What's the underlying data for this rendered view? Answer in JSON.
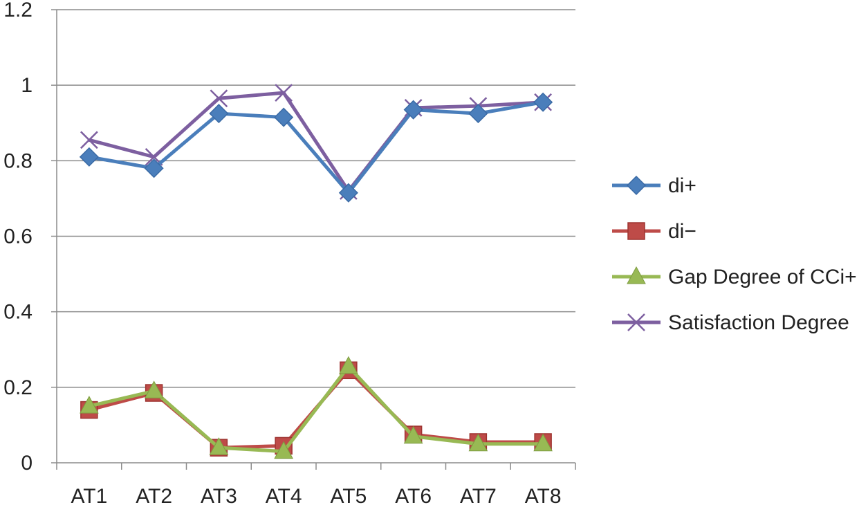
{
  "chart_data": {
    "type": "line",
    "title": "",
    "xlabel": "",
    "ylabel": "",
    "categories": [
      "AT1",
      "AT2",
      "AT3",
      "AT4",
      "AT5",
      "AT6",
      "AT7",
      "AT8"
    ],
    "ylim": [
      0,
      1.2
    ],
    "yticks": [
      0,
      0.2,
      0.4,
      0.6,
      0.8,
      1,
      1.2
    ],
    "ytick_labels": [
      "0",
      "0.2",
      "0.4",
      "0.6",
      "0.8",
      "1",
      "1.2"
    ],
    "grid": "horizontal",
    "legend_position": "right",
    "series": [
      {
        "name": "di+",
        "color": "#4a7ebb",
        "marker": "diamond",
        "values": [
          0.81,
          0.78,
          0.925,
          0.915,
          0.715,
          0.935,
          0.925,
          0.955
        ]
      },
      {
        "name": "di−",
        "color": "#be4b48",
        "marker": "square",
        "values": [
          0.14,
          0.185,
          0.04,
          0.045,
          0.245,
          0.075,
          0.055,
          0.055
        ]
      },
      {
        "name": "Gap Degree of CCi+",
        "color": "#98b954",
        "marker": "triangle",
        "values": [
          0.15,
          0.19,
          0.04,
          0.03,
          0.255,
          0.07,
          0.05,
          0.05
        ]
      },
      {
        "name": "Satisfaction Degree",
        "color": "#7d5fa0",
        "marker": "x",
        "values": [
          0.855,
          0.81,
          0.965,
          0.98,
          0.72,
          0.94,
          0.945,
          0.955
        ]
      }
    ]
  }
}
